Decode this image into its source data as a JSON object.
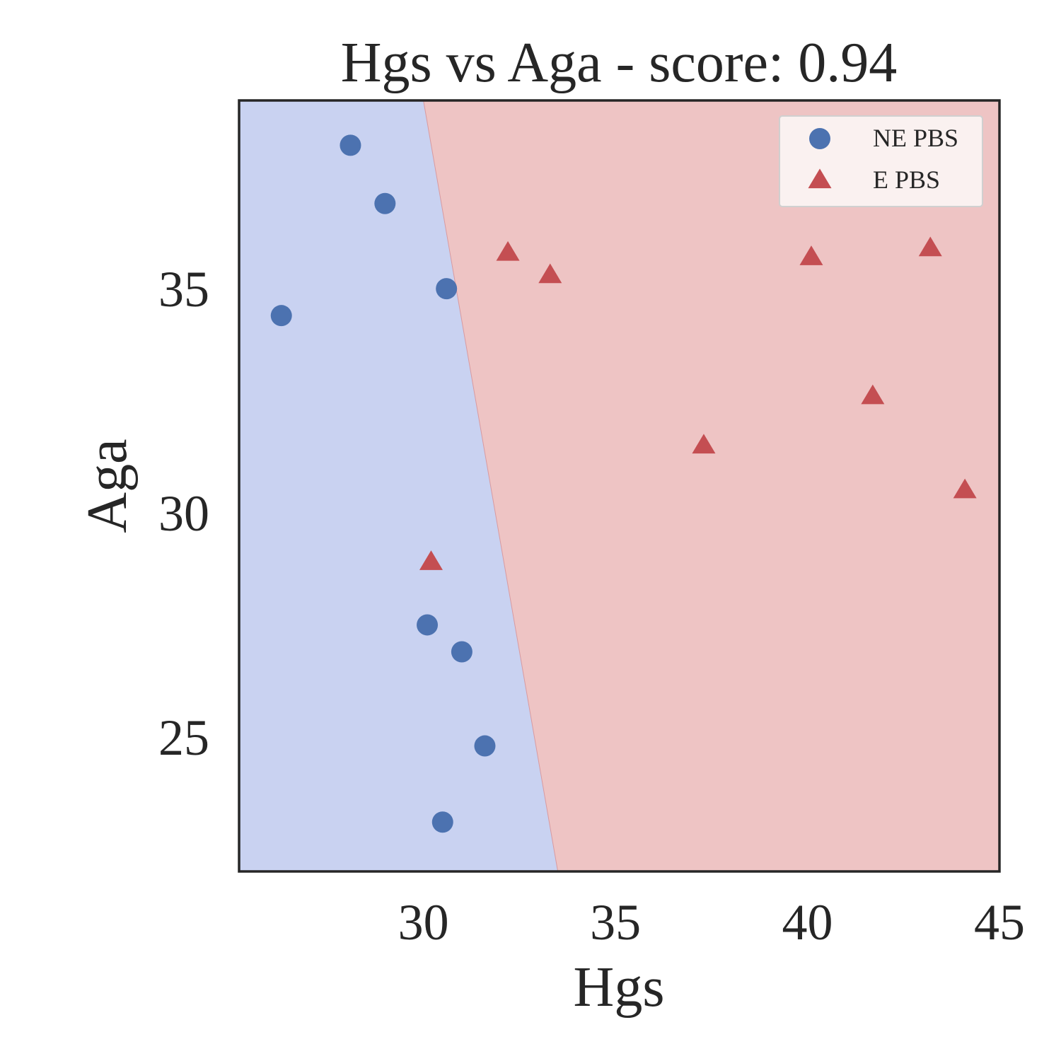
{
  "chart_data": {
    "type": "scatter",
    "title": "Hgs vs Aga - score: 0.94",
    "xlabel": "Hgs",
    "ylabel": "Aga",
    "xlim": [
      25.2,
      45.0
    ],
    "ylim": [
      22.0,
      39.2
    ],
    "xticks": [
      30,
      35,
      40,
      45
    ],
    "yticks": [
      25,
      30,
      35
    ],
    "grid": false,
    "legend_position": "top-right",
    "decision_boundary": {
      "top": [
        30.0,
        39.2
      ],
      "bottom": [
        33.5,
        22.0
      ],
      "left_region": "NE PBS",
      "right_region": "E PBS"
    },
    "series": [
      {
        "name": "NE PBS",
        "marker": "circle",
        "color": "#4c72b0",
        "points": [
          [
            28.1,
            38.2
          ],
          [
            29.0,
            36.9
          ],
          [
            30.6,
            35.0
          ],
          [
            26.3,
            34.4
          ],
          [
            30.1,
            27.5
          ],
          [
            31.0,
            26.9
          ],
          [
            31.6,
            24.8
          ],
          [
            30.5,
            23.1
          ]
        ]
      },
      {
        "name": "E PBS",
        "marker": "triangle",
        "color": "#c44e52",
        "points": [
          [
            32.2,
            35.8
          ],
          [
            33.3,
            35.3
          ],
          [
            40.1,
            35.7
          ],
          [
            43.2,
            35.9
          ],
          [
            41.7,
            32.6
          ],
          [
            37.3,
            31.5
          ],
          [
            44.1,
            30.5
          ],
          [
            30.2,
            28.9
          ]
        ]
      }
    ],
    "colors": {
      "region_left": "#c9d2f1",
      "region_right": "#eec4c4",
      "legend_bg": "#faf1f0",
      "axes_edge": "#262626"
    }
  }
}
